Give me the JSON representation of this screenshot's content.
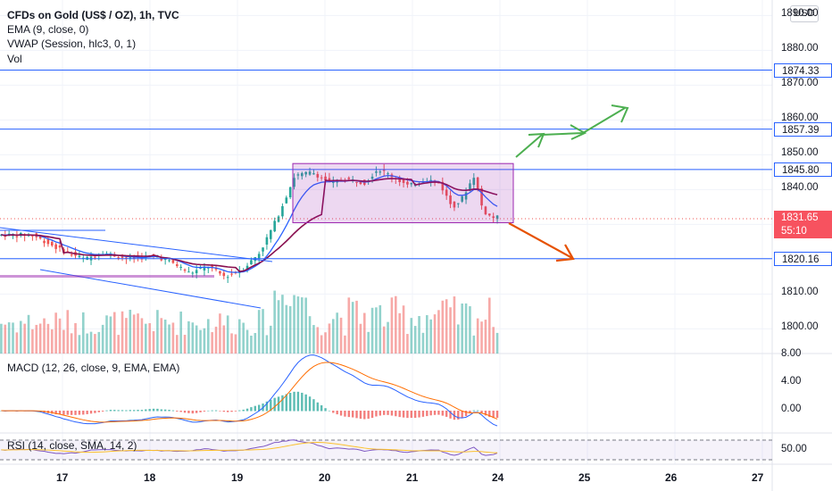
{
  "header": {
    "symbol_title": "CFDs on Gold (US$ / OZ), 1h, TVC",
    "ema_label": "EMA (9, close, 0)",
    "vwap_label": "VWAP (Session, hlc3, 0, 1)",
    "vol_label": "Vol",
    "currency_button": "USD"
  },
  "price_axis": {
    "ticks": [
      "1890.00",
      "1880.00",
      "1870.00",
      "1860.00",
      "1850.00",
      "1840.00",
      "1810.00",
      "1800.00"
    ],
    "levels": [
      {
        "label": "1874.33",
        "value": 1874.33
      },
      {
        "label": "1857.39",
        "value": 1857.39
      },
      {
        "label": "1845.80",
        "value": 1845.8
      },
      {
        "label": "1820.16",
        "value": 1820.16
      }
    ],
    "current_price": "1831.65",
    "countdown": "55:10"
  },
  "macd": {
    "label": "MACD (12, 26, close, 9, EMA, EMA)",
    "ticks": [
      "8.00",
      "4.00",
      "0.00"
    ]
  },
  "rsi": {
    "label": "RSI (14, close, SMA, 14, 2)",
    "ticks": [
      "50.00"
    ]
  },
  "time_axis": {
    "labels": [
      "17",
      "18",
      "19",
      "20",
      "21",
      "24",
      "25",
      "26",
      "27"
    ]
  },
  "colors": {
    "up": "#26a69a",
    "down": "#ef5350",
    "level_line": "#2962ff",
    "ema": "#2962ff",
    "vwap": "#880e4f",
    "range_box": "#9c27b0",
    "arrow_up": "#4caf50",
    "arrow_down": "#e65100"
  },
  "chart_data": {
    "type": "candlestick",
    "interval": "1h",
    "annotations": {
      "range_box_price": [
        1830.5,
        1847.5
      ],
      "target_prices": [
        1857.39
      ],
      "support_prices": [
        1820.16
      ]
    },
    "price_anchors": [
      {
        "d": 16.7,
        "p": 1827
      },
      {
        "d": 17.0,
        "p": 1823
      },
      {
        "d": 17.3,
        "p": 1820
      },
      {
        "d": 17.5,
        "p": 1822
      },
      {
        "d": 17.8,
        "p": 1820
      },
      {
        "d": 18.1,
        "p": 1821
      },
      {
        "d": 18.3,
        "p": 1819
      },
      {
        "d": 18.5,
        "p": 1816
      },
      {
        "d": 18.7,
        "p": 1818
      },
      {
        "d": 18.9,
        "p": 1815
      },
      {
        "d": 19.1,
        "p": 1817
      },
      {
        "d": 19.3,
        "p": 1822
      },
      {
        "d": 19.5,
        "p": 1832
      },
      {
        "d": 19.7,
        "p": 1844
      },
      {
        "d": 19.9,
        "p": 1845
      },
      {
        "d": 20.1,
        "p": 1842
      },
      {
        "d": 20.3,
        "p": 1843
      },
      {
        "d": 20.5,
        "p": 1842
      },
      {
        "d": 20.65,
        "p": 1846
      },
      {
        "d": 20.8,
        "p": 1844
      },
      {
        "d": 21.0,
        "p": 1841
      },
      {
        "d": 21.2,
        "p": 1843
      },
      {
        "d": 21.35,
        "p": 1842
      },
      {
        "d": 21.5,
        "p": 1835
      },
      {
        "d": 21.6,
        "p": 1837
      },
      {
        "d": 21.75,
        "p": 1844
      },
      {
        "d": 21.85,
        "p": 1834
      },
      {
        "d": 21.95,
        "p": 1832
      }
    ]
  }
}
